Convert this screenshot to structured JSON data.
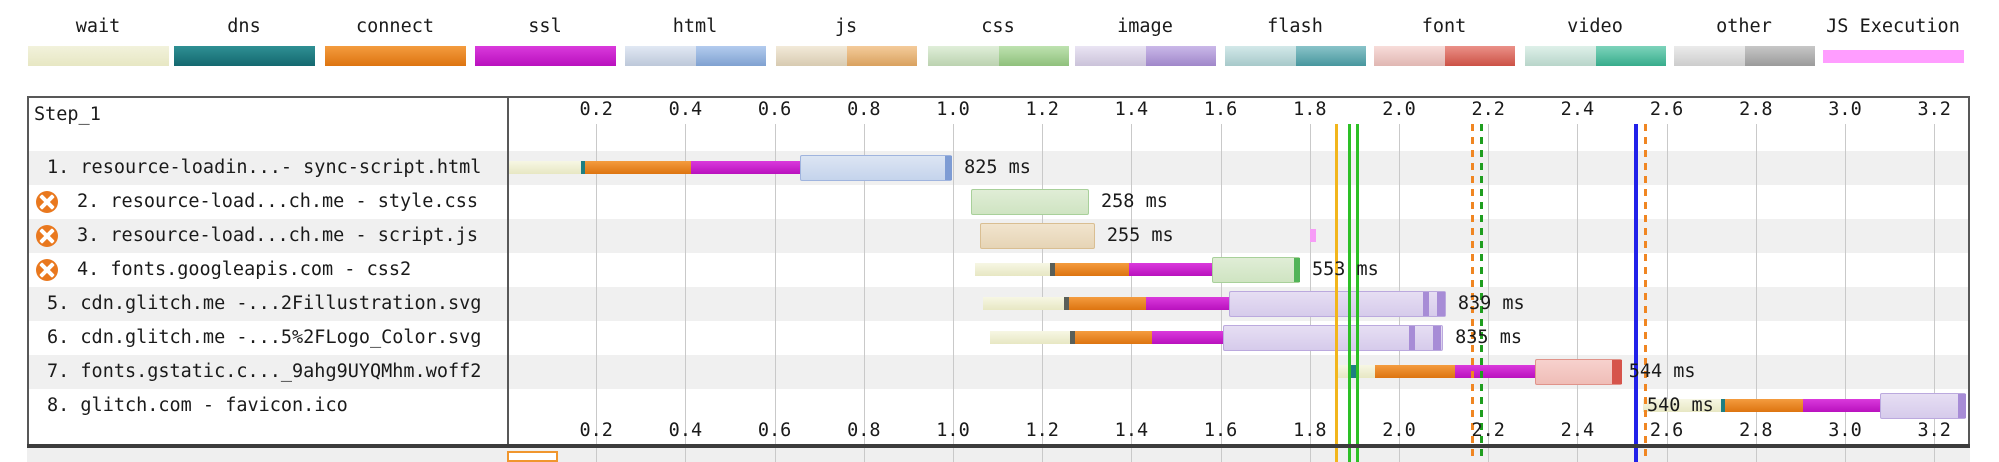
{
  "legend": {
    "items": [
      {
        "label": "wait",
        "two_tone": false,
        "grad": [
          "#F2F2DC",
          "#E7E7C3"
        ]
      },
      {
        "label": "dns",
        "two_tone": false,
        "grad": [
          "#2F9094",
          "#14686F"
        ]
      },
      {
        "label": "connect",
        "two_tone": false,
        "grad": [
          "#F49C3F",
          "#DD7410"
        ]
      },
      {
        "label": "ssl",
        "two_tone": false,
        "grad": [
          "#DA3ADC",
          "#B911BE"
        ]
      },
      {
        "label": "html",
        "two_tone": true,
        "light": "#CDD9EC",
        "dark": "#8DB2E6"
      },
      {
        "label": "js",
        "two_tone": true,
        "light": "#EADCC0",
        "dark": "#EFB269"
      },
      {
        "label": "css",
        "two_tone": true,
        "light": "#CBE4BF",
        "dark": "#9ED489"
      },
      {
        "label": "image",
        "two_tone": true,
        "light": "#DCD3EC",
        "dark": "#B095DE"
      },
      {
        "label": "flash",
        "two_tone": true,
        "light": "#B5DADB",
        "dark": "#4FA6AE"
      },
      {
        "label": "font",
        "two_tone": true,
        "light": "#F3C6C1",
        "dark": "#E15A4D"
      },
      {
        "label": "video",
        "two_tone": true,
        "light": "#C8E7DB",
        "dark": "#3DBE9A"
      },
      {
        "label": "other",
        "two_tone": true,
        "light": "#DEDEDE",
        "dark": "#ABABAB"
      },
      {
        "label": "JS Execution",
        "two_tone": false,
        "thin": true,
        "grad": [
          "#FF9DFF",
          "#FF9DFF"
        ]
      }
    ]
  },
  "chart_data": {
    "type": "waterfall",
    "step_label": "Step_1",
    "time_axis": {
      "unit": "seconds",
      "min": 0,
      "max": 3.28,
      "tick_interval": 0.2,
      "ticks": [
        "0.2",
        "0.4",
        "0.6",
        "0.8",
        "1.0",
        "1.2",
        "1.4",
        "1.6",
        "1.8",
        "2.0",
        "2.2",
        "2.4",
        "2.6",
        "2.8",
        "3.0",
        "3.2"
      ]
    },
    "palette": {
      "wait": [
        "#F7F7E4",
        "#E7E7C3"
      ],
      "dns": "#1E7E82",
      "connect": [
        "#F49C3F",
        "#DD7410"
      ],
      "ssl": [
        "#DA3ADC",
        "#B911BE"
      ],
      "darktick": "#5A5F58",
      "jsexec": "#F79CF7",
      "boxes": {
        "html": {
          "fill": [
            "#DCE5F3",
            "#C5D4EC"
          ],
          "border": "#9FB4DE",
          "strip": "#7E9CD4"
        },
        "css": {
          "fill": [
            "#E0EDD6",
            "#CFE4C2"
          ],
          "border": "#A8D09A",
          "strip": "#52B458"
        },
        "js": {
          "fill": [
            "#F1E4CE",
            "#E6D4B6"
          ],
          "border": "#D9BE92",
          "strip": "#CBA86E"
        },
        "image": {
          "fill": [
            "#E6DEF3",
            "#D6CBEB"
          ],
          "border": "#BBA9DE",
          "strip": "#A78CD6"
        },
        "font": {
          "fill": [
            "#F7D1CD",
            "#EFBDB7"
          ],
          "border": "#E0938A",
          "strip": "#D6544B"
        }
      }
    },
    "rows": [
      {
        "label": "1. resource-loadin...- sync-script.html",
        "blocked": false,
        "duration_label": "825 ms",
        "duration_ms": 825,
        "segments": [
          [
            "wait",
            0.005,
            0.166
          ],
          [
            "dns",
            0.166,
            0.176
          ],
          [
            "connect",
            0.176,
            0.413
          ],
          [
            "ssl",
            0.413,
            0.657
          ]
        ],
        "download": [
          "html",
          0.657,
          0.998
        ],
        "chunks": [
          [
            0.983,
            0.998
          ]
        ]
      },
      {
        "label": "2. resource-load...ch.me - style.css",
        "blocked": true,
        "duration_label": "258 ms",
        "duration_ms": 258,
        "segments": [],
        "download": [
          "css",
          1.04,
          1.305
        ],
        "chunks": []
      },
      {
        "label": "3. resource-load...ch.me - script.js",
        "blocked": true,
        "duration_label": "255 ms",
        "duration_ms": 255,
        "segments": [
          [
            "jsexec",
            1.8,
            1.814
          ]
        ],
        "download": [
          "js",
          1.061,
          1.318
        ],
        "chunks": []
      },
      {
        "label": "4. fonts.googleapis.com - css2",
        "blocked": true,
        "duration_label": "553 ms",
        "duration_ms": 553,
        "segments": [
          [
            "wait",
            1.049,
            1.218
          ],
          [
            "darktick",
            1.218,
            1.228
          ],
          [
            "connect",
            1.228,
            1.395
          ],
          [
            "ssl",
            1.395,
            1.581
          ]
        ],
        "download": [
          "css",
          1.581,
          1.778
        ],
        "chunks": [
          [
            1.764,
            1.778
          ]
        ]
      },
      {
        "label": "5. cdn.glitch.me -...2Fillustration.svg",
        "blocked": false,
        "duration_label": "839 ms",
        "duration_ms": 839,
        "segments": [
          [
            "wait",
            1.067,
            1.249
          ],
          [
            "darktick",
            1.249,
            1.259
          ],
          [
            "connect",
            1.259,
            1.433
          ],
          [
            "ssl",
            1.433,
            1.619
          ]
        ],
        "download": [
          "image",
          1.619,
          2.105
        ],
        "chunks": [
          [
            2.054,
            2.067
          ],
          [
            2.085,
            2.103
          ]
        ]
      },
      {
        "label": "6. cdn.glitch.me -...5%2FLogo_Color.svg",
        "blocked": false,
        "duration_label": "835 ms",
        "duration_ms": 835,
        "segments": [
          [
            "wait",
            1.083,
            1.263
          ],
          [
            "darktick",
            1.263,
            1.273
          ],
          [
            "connect",
            1.273,
            1.446
          ],
          [
            "ssl",
            1.446,
            1.605
          ]
        ],
        "download": [
          "image",
          1.605,
          2.099
        ],
        "chunks": [
          [
            2.022,
            2.036
          ],
          [
            2.076,
            2.094
          ]
        ]
      },
      {
        "label": "7. fonts.gstatic.c..._9ahg9UYQMhm.woff2",
        "blocked": false,
        "duration_label": "544 ms",
        "duration_ms": 544,
        "label_t": 2.515,
        "segments": [
          [
            "wait",
            1.857,
            1.893
          ],
          [
            "dns",
            1.893,
            1.903
          ],
          [
            "wait",
            1.903,
            1.946
          ],
          [
            "connect",
            1.946,
            2.126
          ],
          [
            "ssl",
            2.126,
            2.305
          ]
        ],
        "download": [
          "font",
          2.305,
          2.5
        ],
        "chunks": [
          [
            2.478,
            2.5
          ]
        ]
      },
      {
        "label": "8. glitch.com - favicon.ico",
        "blocked": false,
        "duration_label": "540 ms",
        "duration_ms": 540,
        "label_t": 2.556,
        "segments": [
          [
            "wait",
            2.547,
            2.722
          ],
          [
            "dns",
            2.722,
            2.732
          ],
          [
            "connect",
            2.732,
            2.906
          ],
          [
            "ssl",
            2.906,
            3.079
          ]
        ],
        "download": [
          "image",
          3.079,
          3.271
        ],
        "chunks": [
          [
            3.254,
            3.271
          ]
        ]
      }
    ],
    "markers": [
      {
        "id": "first-paint-line",
        "t": 1.856,
        "color": "#F2B61C",
        "style": "solid",
        "w": 3
      },
      {
        "id": "start-render-line",
        "t": 1.886,
        "color": "#2DC026",
        "style": "solid",
        "w": 3
      },
      {
        "id": "first-contentful-paint-line",
        "t": 1.903,
        "color": "#2DC026",
        "style": "solid",
        "w": 3
      },
      {
        "id": "dom-interactive-line",
        "t": 2.161,
        "color": "#F08622",
        "style": "dashed",
        "w": 3
      },
      {
        "id": "dom-content-loaded-line",
        "t": 2.182,
        "color": "#1F9E1F",
        "style": "dashed",
        "w": 3
      },
      {
        "id": "document-complete-line",
        "t": 2.527,
        "color": "#2121E9",
        "style": "solid",
        "w": 4
      },
      {
        "id": "after-on-load-line",
        "t": 2.549,
        "color": "#F08622",
        "style": "dashed",
        "w": 3
      }
    ],
    "next_section_preview": {
      "orange_box_t": [
        0.0,
        0.115
      ],
      "border_color": "#F0962E"
    }
  }
}
